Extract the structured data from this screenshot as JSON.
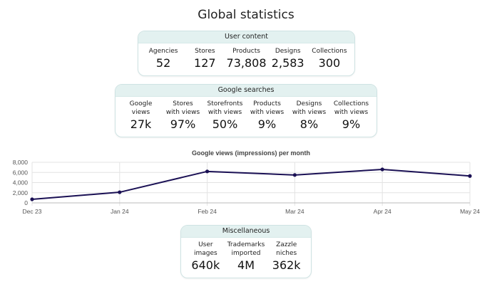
{
  "title": "Global statistics",
  "user_content": {
    "header": "User content",
    "stats": [
      {
        "label": "Agencies",
        "value": "52"
      },
      {
        "label": "Stores",
        "value": "127"
      },
      {
        "label": "Products",
        "value": "73,808"
      },
      {
        "label": "Designs",
        "value": "2,583"
      },
      {
        "label": "Collections",
        "value": "300"
      }
    ]
  },
  "google_searches": {
    "header": "Google searches",
    "stats": [
      {
        "label": "Google\nviews",
        "value": "27k"
      },
      {
        "label": "Stores\nwith views",
        "value": "97%"
      },
      {
        "label": "Storefronts\nwith views",
        "value": "50%"
      },
      {
        "label": "Products\nwith views",
        "value": "9%"
      },
      {
        "label": "Designs\nwith views",
        "value": "8%"
      },
      {
        "label": "Collections\nwith views",
        "value": "9%"
      }
    ]
  },
  "miscellaneous": {
    "header": "Miscellaneous",
    "stats": [
      {
        "label": "User\nimages",
        "value": "640k"
      },
      {
        "label": "Trademarks\nimported",
        "value": "4M"
      },
      {
        "label": "Zazzle\nniches",
        "value": "362k"
      }
    ]
  },
  "chart_data": {
    "type": "line",
    "title": "Google views (impressions) per month",
    "xlabel": "",
    "ylabel": "",
    "categories": [
      "Dec 23",
      "Jan 24",
      "Feb 24",
      "Mar 24",
      "Apr 24",
      "May 24"
    ],
    "series": [
      {
        "values": [
          700,
          2100,
          6200,
          5500,
          6600,
          5300
        ],
        "color": "#1a1054"
      }
    ],
    "ylim": [
      0,
      8000
    ],
    "yticks": [
      0,
      2000,
      4000,
      6000,
      8000
    ],
    "ytick_labels": [
      "0",
      "2,000",
      "4,000",
      "6,000",
      "8,000"
    ],
    "grid": true,
    "legend": "none"
  }
}
